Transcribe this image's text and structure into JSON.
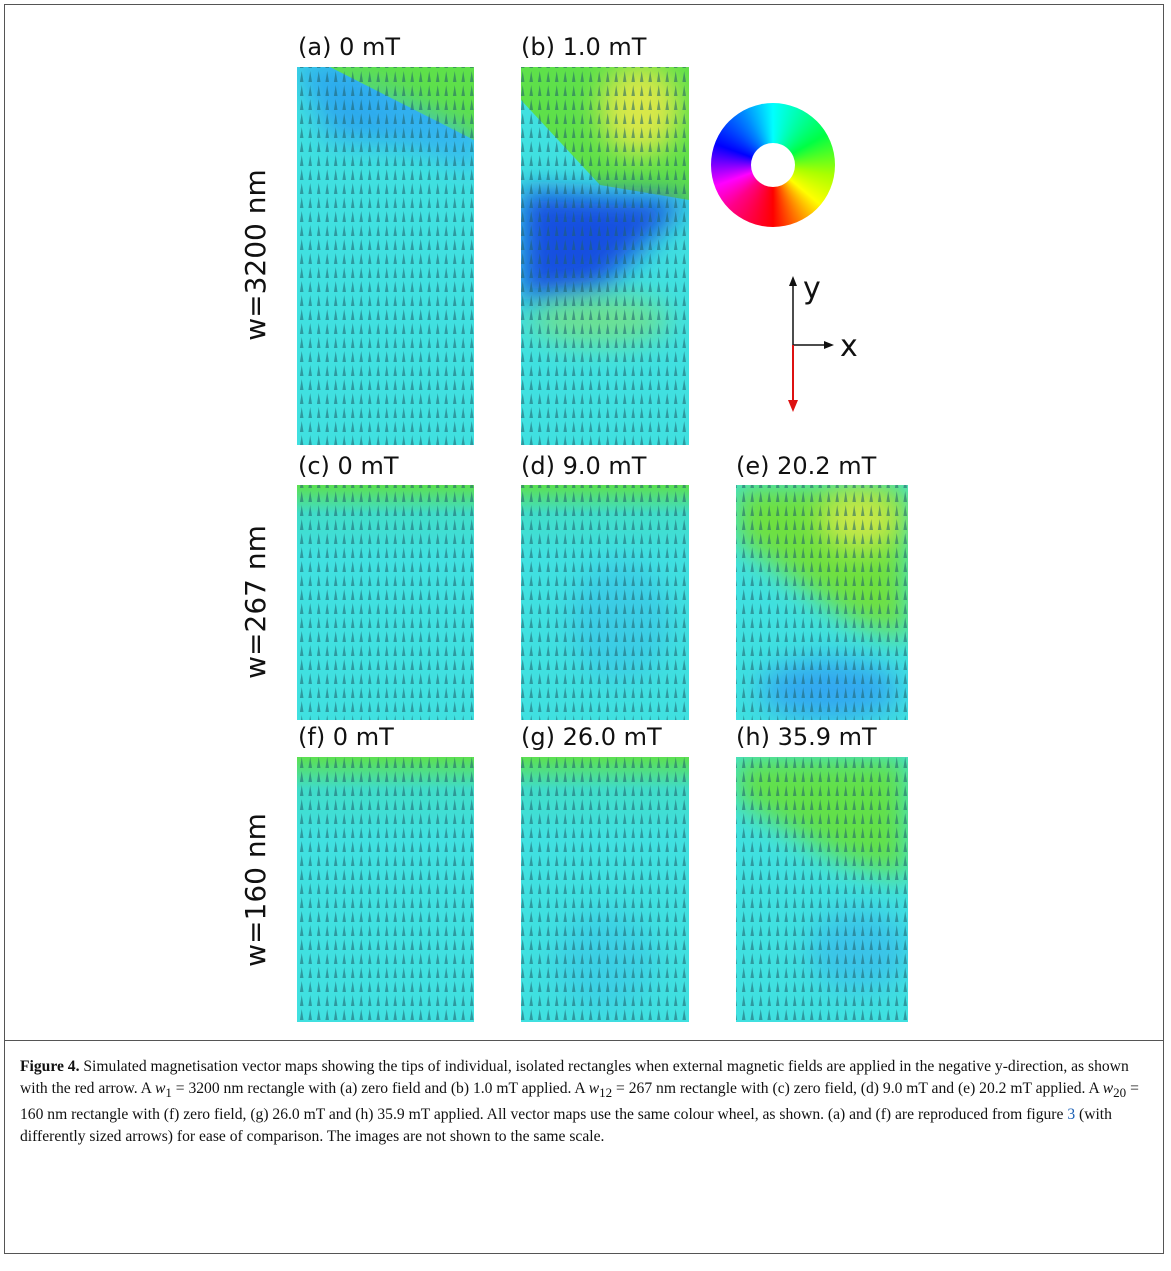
{
  "figure": {
    "panels": [
      "(a) 0 mT",
      "(b) 1.0 mT",
      "(c) 0 mT",
      "(d) 9.0 mT",
      "(e) 20.2 mT",
      "(f) 0 mT",
      "(g) 26.0 mT",
      "(h) 35.9 mT"
    ],
    "row_labels": [
      "w=3200 nm",
      "w=267 nm",
      "w=160 nm"
    ],
    "axes": {
      "y": "y",
      "x": "x"
    },
    "caption": {
      "label": "Figure 4.",
      "runs": [
        " Simulated magnetisation vector maps showing the tips of individual, isolated rectangles when external magnetic fields are applied in the negative y-direction, as shown with the red arrow. A ",
        "w",
        "1",
        " = 3200 nm rectangle with (a) zero field and (b) 1.0 mT applied. A ",
        "w",
        "12",
        " = 267 nm rectangle with (c) zero field, (d) 9.0 mT and (e) 20.2 mT applied. A ",
        "w",
        "20",
        " = 160 nm rectangle with (f) zero field, (g) 26.0 mT and (h) 35.9 mT applied. All vector maps use the same colour wheel, as shown. (a) and (f) are reproduced from figure ",
        "3",
        " (with differently sized arrows) for ease of comparison. The images are not shown to the same scale."
      ]
    }
  }
}
